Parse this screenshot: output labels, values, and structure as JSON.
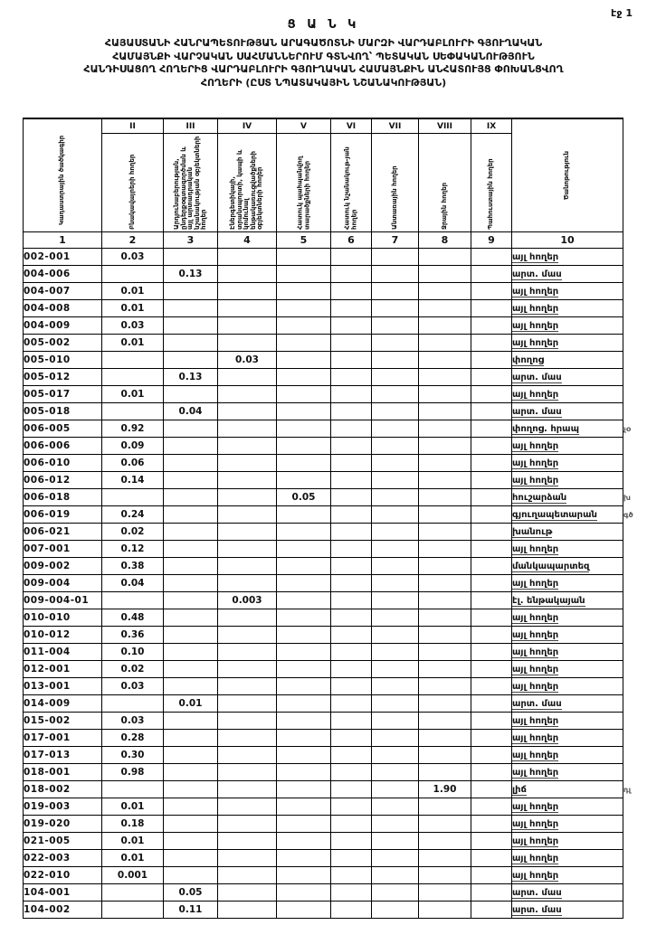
{
  "page": {
    "page_number": "էջ 1"
  },
  "title": {
    "heading": "Ց Ա Ն Կ",
    "lines": [
      "ՀԱՅԱՍՏԱՆԻ ՀԱՆՐԱՊԵՏՈՒԹՅԱՆ ԱՐԱԳԱԾՈՏՆԻ ՄԱՐԶԻ ՎԱՐԴԱԲԼՈՒՐԻ ԳՅՈՒՂԱԿԱՆ",
      "ՀԱՄԱՅՆՔԻ ՎԱՐՉԱԿԱՆ ՍԱՀՄԱՆՆԵՐՈՒՄ ԳՏՆՎՈՂ՝ ՊԵՏԱԿԱՆ ՍԵՓԱԿԱՆՈՒԹՅՈՒՆ",
      "ՀԱՆԴԻՍԱՑՈՂ ՀՈՂԵՐԻՑ ՎԱՐԴԱԲԼՈՒՐԻ ԳՅՈՒՂԱԿԱՆ ՀԱՄԱՅՆՔԻՆ ԱՆՀԱՏՈՒՅՑ ՓՈԽԱՆՑՎՈՂ",
      "ՀՈՂԵՐԻ  (ԸՍՏ ՆՊԱՏԱԿԱՅԻՆ ՆՇԱՆԱԿՈՒԹՅԱՆ)"
    ]
  },
  "table": {
    "columns": [
      {
        "num": "",
        "label": "Կադաստրային ծածկագիր",
        "index": "1"
      },
      {
        "num": "II",
        "label": "Բնակավայրերի հողեր",
        "index": "2"
      },
      {
        "num": "III",
        "label": "Արդյունաբերության, ընդերքօգտագործման և այլ արտադրական նշանակության օբյեկտների հողեր",
        "index": "3"
      },
      {
        "num": "IV",
        "label": "Էներգետիկայի, տրանսպորտի, կապի և կոմունալ ենթակառուցվածքների օբյեկտների հողեր",
        "index": "4"
      },
      {
        "num": "V",
        "label": "Հատուկ պահպանվող տարածքների հողեր",
        "index": "5"
      },
      {
        "num": "VI",
        "label": "Հատուկ նշանակութ-յան հողեր",
        "index": "6"
      },
      {
        "num": "VII",
        "label": "Անտառային հողեր",
        "index": "7"
      },
      {
        "num": "VIII",
        "label": "Ջրային հողեր",
        "index": "8"
      },
      {
        "num": "IX",
        "label": "Պահուստային հողեր",
        "index": "9"
      },
      {
        "num": "",
        "label": "Ծանոթություն",
        "index": "10"
      }
    ],
    "rows": [
      {
        "code": "002-001",
        "c2": "0.03",
        "note": "այլ հողեր"
      },
      {
        "code": "004-006",
        "c3": "0.13",
        "note": "արտ. մաս"
      },
      {
        "code": "004-007",
        "c2": "0.01",
        "note": "այլ հողեր"
      },
      {
        "code": "004-008",
        "c2": "0.01",
        "note": "այլ հողեր"
      },
      {
        "code": "004-009",
        "c2": "0.03",
        "note": "այլ հողեր"
      },
      {
        "code": "005-002",
        "c2": "0.01",
        "note": "այլ հողեր"
      },
      {
        "code": "005-010",
        "c4": "0.03",
        "note": "փողոց"
      },
      {
        "code": "005-012",
        "c3": "0.13",
        "note": "արտ. մաս"
      },
      {
        "code": "005-017",
        "c2": "0.01",
        "note": "այլ հողեր"
      },
      {
        "code": "005-018",
        "c3": "0.04",
        "note": "արտ. մաս"
      },
      {
        "code": "006-005",
        "c2": "0.92",
        "note": "փողոց. հրապ",
        "mark": "չօ"
      },
      {
        "code": "006-006",
        "c2": "0.09",
        "note": "այլ հողեր"
      },
      {
        "code": "006-010",
        "c2": "0.06",
        "note": "այլ հողեր"
      },
      {
        "code": "006-012",
        "c2": "0.14",
        "note": "այլ հողեր"
      },
      {
        "code": "006-018",
        "c5": "0.05",
        "note": "հուշարձան",
        "mark": "խ"
      },
      {
        "code": "006-019",
        "c2": "0.24",
        "note": "գյուղապետարան",
        "mark": "գծ"
      },
      {
        "code": "006-021",
        "c2": "0.02",
        "note": "խանութ"
      },
      {
        "code": "007-001",
        "c2": "0.12",
        "note": "այլ հողեր"
      },
      {
        "code": "009-002",
        "c2": "0.38",
        "note": "մանկապարտեզ"
      },
      {
        "code": "009-004",
        "c2": "0.04",
        "note": "այլ հողեր"
      },
      {
        "code": "009-004-01",
        "c4": "0.003",
        "note": "էլ. ենթակայան"
      },
      {
        "code": "010-010",
        "c2": "0.48",
        "note": "այլ հողեր"
      },
      {
        "code": "010-012",
        "c2": "0.36",
        "note": "այլ հողեր"
      },
      {
        "code": "011-004",
        "c2": "0.10",
        "note": "այլ հողեր"
      },
      {
        "code": "012-001",
        "c2": "0.02",
        "note": "այլ հողեր"
      },
      {
        "code": "013-001",
        "c2": "0.03",
        "note": "այլ հողեր"
      },
      {
        "code": "014-009",
        "c3": "0.01",
        "note": "արտ. մաս"
      },
      {
        "code": "015-002",
        "c2": "0.03",
        "note": "այլ հողեր"
      },
      {
        "code": "017-001",
        "c2": "0.28",
        "note": "այլ հողեր"
      },
      {
        "code": "017-013",
        "c2": "0.30",
        "note": "այլ հողեր"
      },
      {
        "code": "018-001",
        "c2": "0.98",
        "note": "այլ հողեր"
      },
      {
        "code": "018-002",
        "c8": "1.90",
        "note": "լիճ",
        "mark": "դլ"
      },
      {
        "code": "019-003",
        "c2": "0.01",
        "note": "այլ հողեր"
      },
      {
        "code": "019-020",
        "c2": "0.18",
        "note": "այլ հողեր"
      },
      {
        "code": "021-005",
        "c2": "0.01",
        "note": "այլ հողեր"
      },
      {
        "code": "022-003",
        "c2": "0.01",
        "note": "այլ հողեր"
      },
      {
        "code": "022-010",
        "c2": "0.001",
        "note": "այլ հողեր"
      },
      {
        "code": "104-001",
        "c3": "0.05",
        "note": "արտ. մաս"
      },
      {
        "code": "104-002",
        "c3": "0.11",
        "note": "արտ. մաս"
      }
    ]
  }
}
